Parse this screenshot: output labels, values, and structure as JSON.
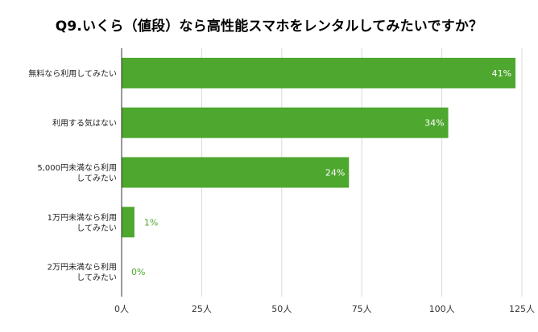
{
  "chart_data": {
    "type": "bar",
    "orientation": "horizontal",
    "title": "Q9.いくら（値段）なら高性能スマホをレンタルしてみたいですか？",
    "xlabel": "",
    "ylabel": "",
    "unit_suffix": "人",
    "xlim": [
      0,
      125
    ],
    "x_ticks": [
      {
        "value": 0,
        "label": "0人"
      },
      {
        "value": 25,
        "label": "25人"
      },
      {
        "value": 50,
        "label": "50人"
      },
      {
        "value": 75,
        "label": "75人"
      },
      {
        "value": 100,
        "label": "100人"
      },
      {
        "value": 125,
        "label": "125人"
      }
    ],
    "grid": true,
    "legend": "none",
    "bar_color": "#4ea72e",
    "categories": [
      {
        "lines": [
          "無料なら利用してみたい"
        ]
      },
      {
        "lines": [
          "利用する気はない"
        ]
      },
      {
        "lines": [
          "5,000円未満なら利用",
          "してみたい"
        ]
      },
      {
        "lines": [
          "1万円未満なら利用",
          "してみたい"
        ]
      },
      {
        "lines": [
          "2万円未満なら利用",
          "してみたい"
        ]
      }
    ],
    "values": [
      123,
      102,
      71,
      4,
      0
    ],
    "data_labels": [
      "41%",
      "34%",
      "24%",
      "1%",
      "0%"
    ]
  }
}
